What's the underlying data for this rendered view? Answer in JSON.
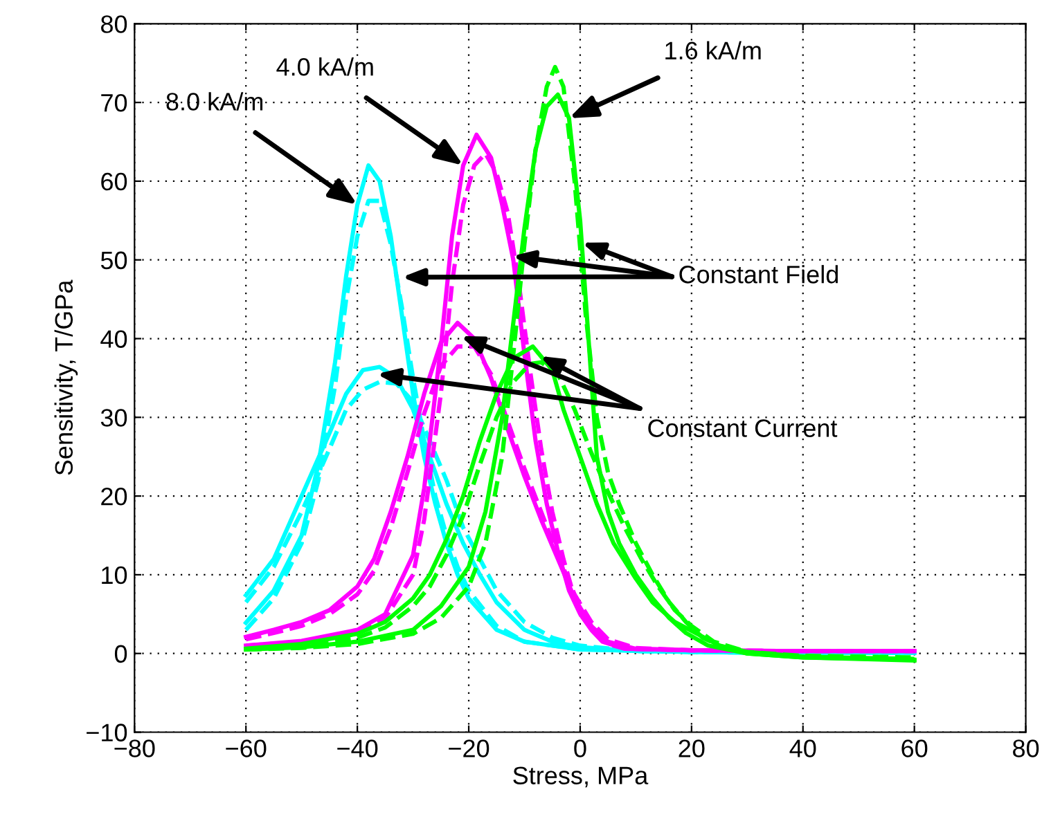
{
  "chart_data": {
    "type": "line",
    "xlabel": "Stress, MPa",
    "ylabel": "Sensitivity, T/GPa",
    "xlim": [
      -80,
      80
    ],
    "ylim": [
      -10,
      80
    ],
    "xticks": [
      -80,
      -60,
      -40,
      -20,
      0,
      20,
      40,
      60,
      80
    ],
    "yticks": [
      -10,
      0,
      10,
      20,
      30,
      40,
      50,
      60,
      70,
      80
    ],
    "grid": true,
    "legend": false,
    "marker": "none",
    "series": [
      {
        "color": "#00ffff",
        "line_style": "solid",
        "x": [
          -60,
          -55,
          -50,
          -47,
          -44,
          -42,
          -40,
          -38,
          -36,
          -34,
          -32,
          -30,
          -28,
          -26,
          -24,
          -22,
          -20,
          -15,
          -10,
          0,
          20,
          60
        ],
        "values": [
          3.9,
          8,
          15,
          24,
          37,
          48,
          57,
          62,
          60,
          53,
          43,
          33,
          25,
          19,
          14,
          10,
          7,
          3,
          1.5,
          0.5,
          0.2,
          0.1
        ]
      },
      {
        "color": "#00ffff",
        "line_style": "dashed",
        "x": [
          -60,
          -55,
          -50,
          -47,
          -44,
          -42,
          -40,
          -38,
          -36,
          -34,
          -32,
          -30,
          -28,
          -26,
          -24,
          -22,
          -20,
          -15,
          -10,
          0,
          20,
          60
        ],
        "values": [
          3,
          7,
          14,
          22,
          34,
          45,
          53,
          57.5,
          57.5,
          52,
          44,
          35,
          27,
          20,
          15,
          11,
          8,
          3.5,
          1.5,
          0.5,
          0.2,
          0.1
        ]
      },
      {
        "color": "#00ffff",
        "line_style": "solid",
        "x": [
          -60,
          -55,
          -50,
          -45,
          -42,
          -39,
          -36,
          -33,
          -30,
          -27,
          -24,
          -21,
          -18,
          -15,
          -10,
          -5,
          0,
          10,
          30,
          60
        ],
        "values": [
          7.4,
          12,
          20,
          28,
          33,
          36,
          36.4,
          35,
          31,
          25,
          19,
          14,
          10,
          6.5,
          3,
          1.5,
          0.8,
          0.3,
          0.1,
          0.1
        ]
      },
      {
        "color": "#00ffff",
        "line_style": "dashed",
        "x": [
          -60,
          -55,
          -50,
          -45,
          -42,
          -39,
          -36,
          -33,
          -30,
          -27,
          -24,
          -21,
          -18,
          -15,
          -10,
          -5,
          0,
          10,
          30,
          60
        ],
        "values": [
          6.5,
          11,
          18,
          26,
          31,
          33.5,
          34.5,
          34.3,
          32,
          27,
          22,
          16,
          12,
          8,
          4,
          2,
          1,
          0.3,
          0.1,
          0.1
        ]
      },
      {
        "color": "#ff00ff",
        "line_style": "solid",
        "x": [
          -60,
          -50,
          -40,
          -35,
          -30,
          -28,
          -25,
          -23,
          -21,
          -18.6,
          -16,
          -14,
          -12,
          -10,
          -8,
          -6,
          -4,
          -2,
          0,
          2,
          4,
          8,
          20,
          40,
          60
        ],
        "values": [
          1.0,
          1.6,
          3,
          5,
          12.5,
          21,
          39,
          53,
          62,
          65.9,
          63,
          57,
          50,
          38,
          27,
          19,
          13,
          8,
          5,
          3,
          1.5,
          0.6,
          0.4,
          0.3,
          0.3
        ]
      },
      {
        "color": "#ff00ff",
        "line_style": "dashed",
        "x": [
          -60,
          -50,
          -40,
          -35,
          -30,
          -28,
          -25,
          -23,
          -21,
          -19,
          -17,
          -15,
          -13,
          -11,
          -9,
          -7,
          -5,
          -3,
          -1,
          1,
          3,
          5,
          8,
          20,
          40,
          60
        ],
        "values": [
          1.0,
          1.5,
          2.8,
          4.5,
          10,
          17,
          33,
          47,
          57,
          62,
          63.5,
          61,
          56,
          47,
          36,
          26,
          18,
          12,
          7,
          4.5,
          2.5,
          1.2,
          0.6,
          0.4,
          0.3,
          0.3
        ]
      },
      {
        "color": "#ff00ff",
        "line_style": "solid",
        "x": [
          -60,
          -55,
          -50,
          -45,
          -40,
          -37,
          -34,
          -31,
          -28,
          -25,
          -22,
          -19,
          -16,
          -13,
          -10,
          -7,
          -4,
          -1,
          2,
          5,
          10,
          20,
          40,
          60
        ],
        "values": [
          2.1,
          3,
          4,
          5.5,
          8.5,
          12,
          18,
          25,
          33,
          39.5,
          42,
          40,
          35,
          28.5,
          22.5,
          17,
          12,
          7,
          3.5,
          1.5,
          0.6,
          0.4,
          0.3,
          0.3
        ]
      },
      {
        "color": "#ff00ff",
        "line_style": "dashed",
        "x": [
          -60,
          -55,
          -50,
          -45,
          -40,
          -37,
          -34,
          -31,
          -28,
          -25,
          -22,
          -19,
          -16,
          -13,
          -10,
          -7,
          -4,
          -1,
          2,
          5,
          10,
          20,
          40,
          60
        ],
        "values": [
          1.8,
          2.6,
          3.5,
          5,
          7.5,
          10.5,
          16,
          23,
          30.5,
          36.5,
          39,
          39,
          35.5,
          29.5,
          23.5,
          18,
          12.5,
          7.5,
          4,
          1.8,
          0.7,
          0.4,
          0.3,
          0.3
        ]
      },
      {
        "color": "#00ff00",
        "line_style": "solid",
        "x": [
          -60,
          -50,
          -40,
          -30,
          -25,
          -20,
          -17,
          -14,
          -12,
          -10,
          -8,
          -6,
          -4,
          -2,
          0,
          1,
          2,
          3,
          5,
          7,
          10,
          13,
          16,
          19,
          23,
          30,
          40,
          60
        ],
        "values": [
          0.5,
          0.8,
          1.5,
          3,
          6,
          11,
          18,
          30,
          42,
          54,
          64,
          69.5,
          71,
          68,
          55,
          45,
          35,
          25,
          18,
          14,
          10,
          7,
          4.5,
          2.6,
          1,
          0,
          -0.5,
          -0.8
        ]
      },
      {
        "color": "#00ff00",
        "line_style": "dashed",
        "x": [
          -60,
          -50,
          -40,
          -30,
          -25,
          -20,
          -17,
          -14,
          -12,
          -10,
          -8,
          -6,
          -4.5,
          -3,
          -1,
          1,
          3,
          5,
          7,
          10,
          13,
          16,
          19,
          22,
          25,
          30,
          40,
          60
        ],
        "values": [
          0.5,
          0.7,
          1.2,
          2.5,
          4.5,
          8.5,
          14,
          25,
          38,
          52,
          64,
          72,
          74.5,
          72,
          60,
          43,
          30,
          23,
          19,
          14,
          10,
          6.5,
          4,
          2,
          1,
          0.2,
          -0.3,
          -0.5
        ]
      },
      {
        "color": "#00ff00",
        "line_style": "solid",
        "x": [
          -60,
          -50,
          -40,
          -35,
          -30,
          -27,
          -24,
          -21,
          -18,
          -15,
          -12,
          -8.5,
          -5,
          -3,
          0,
          3,
          6,
          10,
          13,
          17,
          21,
          25,
          30,
          40,
          60
        ],
        "values": [
          0.6,
          1.2,
          2.5,
          4,
          7,
          10,
          14.5,
          20,
          27,
          33,
          37.5,
          39,
          36,
          31,
          25,
          19,
          14,
          9.5,
          6.5,
          4,
          2.5,
          1,
          0,
          -0.5,
          -0.9
        ]
      },
      {
        "color": "#00ff00",
        "line_style": "dashed",
        "x": [
          -60,
          -50,
          -40,
          -35,
          -30,
          -27,
          -24,
          -21,
          -18,
          -15,
          -12,
          -9,
          -7,
          -4,
          -1,
          2,
          5,
          8,
          11,
          14,
          17,
          20,
          24,
          30,
          40,
          60
        ],
        "values": [
          0.5,
          1,
          2,
          3.3,
          6,
          8.5,
          12.5,
          17.5,
          24,
          30,
          34.5,
          36.8,
          37,
          35.5,
          31,
          25.5,
          20.5,
          16,
          12,
          8.5,
          5.5,
          3.5,
          1.5,
          0.2,
          -0.4,
          -0.7
        ]
      }
    ],
    "annotations": [
      {
        "text": "8.0 kA/m",
        "x": -40,
        "y": 57
      },
      {
        "text": "4.0 kA/m",
        "x": -21,
        "y": 62
      },
      {
        "text": "1.6 kA/m",
        "x": -2,
        "y": 68
      },
      {
        "text": "Constant Field",
        "x": -32,
        "y": 47.8
      },
      {
        "text": "Constant Current",
        "x": -36.5,
        "y": 35.5
      }
    ]
  }
}
